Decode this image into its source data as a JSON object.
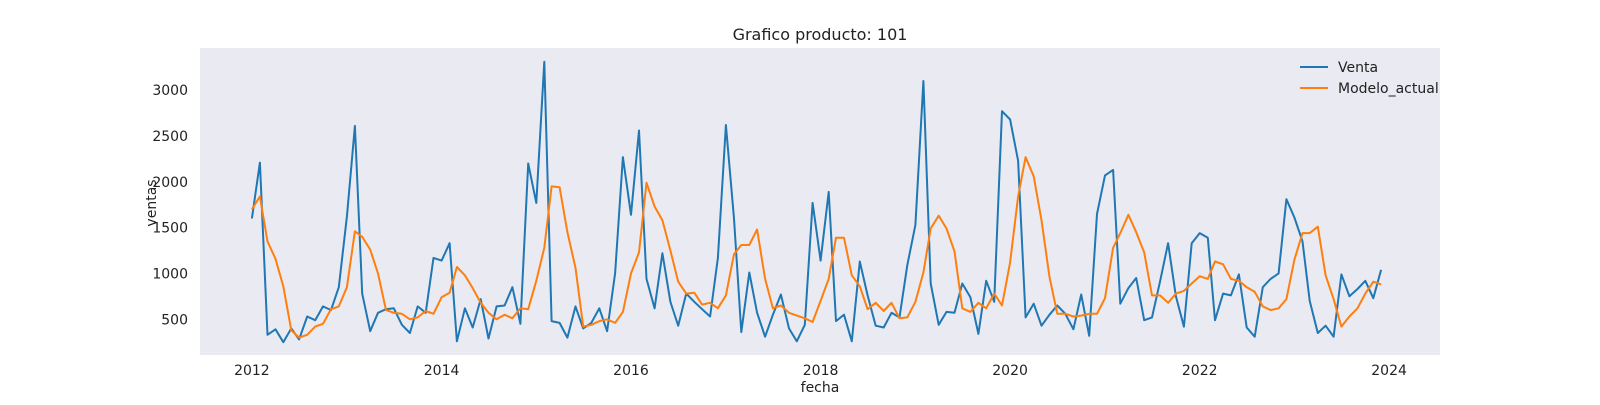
{
  "chart_data": {
    "type": "line",
    "title": "Grafico producto: 101",
    "xlabel": "fecha",
    "ylabel": "ventas",
    "x_type": "date",
    "x_range": [
      "2011-06-15",
      "2024-07-15"
    ],
    "ylim": [
      110,
      3460
    ],
    "x_ticks": [
      "2012",
      "2014",
      "2016",
      "2018",
      "2020",
      "2022",
      "2024"
    ],
    "y_ticks": [
      500,
      1000,
      1500,
      2000,
      2500,
      3000
    ],
    "grid": false,
    "legend": {
      "position": "top-right"
    },
    "background": "#eaeaf2",
    "x": [
      "2012-01-01",
      "2012-02-01",
      "2012-03-01",
      "2012-04-01",
      "2012-05-01",
      "2012-06-01",
      "2012-07-01",
      "2012-08-01",
      "2012-09-01",
      "2012-10-01",
      "2012-11-01",
      "2012-12-01",
      "2013-01-01",
      "2013-02-01",
      "2013-03-01",
      "2013-04-01",
      "2013-05-01",
      "2013-06-01",
      "2013-07-01",
      "2013-08-01",
      "2013-09-01",
      "2013-10-01",
      "2013-11-01",
      "2013-12-01",
      "2014-01-01",
      "2014-02-01",
      "2014-03-01",
      "2014-04-01",
      "2014-05-01",
      "2014-06-01",
      "2014-07-01",
      "2014-08-01",
      "2014-09-01",
      "2014-10-01",
      "2014-11-01",
      "2014-12-01",
      "2015-01-01",
      "2015-02-01",
      "2015-03-01",
      "2015-04-01",
      "2015-05-01",
      "2015-06-01",
      "2015-07-01",
      "2015-08-01",
      "2015-09-01",
      "2015-10-01",
      "2015-11-01",
      "2015-12-01",
      "2016-01-01",
      "2016-02-01",
      "2016-03-01",
      "2016-04-01",
      "2016-05-01",
      "2016-06-01",
      "2016-07-01",
      "2016-08-01",
      "2016-09-01",
      "2016-10-01",
      "2016-11-01",
      "2016-12-01",
      "2017-01-01",
      "2017-02-01",
      "2017-03-01",
      "2017-04-01",
      "2017-05-01",
      "2017-06-01",
      "2017-07-01",
      "2017-08-01",
      "2017-09-01",
      "2017-10-01",
      "2017-11-01",
      "2017-12-01",
      "2018-01-01",
      "2018-02-01",
      "2018-03-01",
      "2018-04-01",
      "2018-05-01",
      "2018-06-01",
      "2018-07-01",
      "2018-08-01",
      "2018-09-01",
      "2018-10-01",
      "2018-11-01",
      "2018-12-01",
      "2019-01-01",
      "2019-02-01",
      "2019-03-01",
      "2019-04-01",
      "2019-05-01",
      "2019-06-01",
      "2019-07-01",
      "2019-08-01",
      "2019-09-01",
      "2019-10-01",
      "2019-11-01",
      "2019-12-01",
      "2020-01-01",
      "2020-02-01",
      "2020-03-01",
      "2020-04-01",
      "2020-05-01",
      "2020-06-01",
      "2020-07-01",
      "2020-08-01",
      "2020-09-01",
      "2020-10-01",
      "2020-11-01",
      "2020-12-01",
      "2021-01-01",
      "2021-02-01",
      "2021-03-01",
      "2021-04-01",
      "2021-05-01",
      "2021-06-01",
      "2021-07-01",
      "2021-08-01",
      "2021-09-01",
      "2021-10-01",
      "2021-11-01",
      "2021-12-01",
      "2022-01-01",
      "2022-02-01",
      "2022-03-01",
      "2022-04-01",
      "2022-05-01",
      "2022-06-01",
      "2022-07-01",
      "2022-08-01",
      "2022-09-01",
      "2022-10-01",
      "2022-11-01",
      "2022-12-01",
      "2023-01-01",
      "2023-02-01",
      "2023-03-01",
      "2023-04-01",
      "2023-05-01",
      "2023-06-01",
      "2023-07-01",
      "2023-08-01",
      "2023-09-01",
      "2023-10-01",
      "2023-11-01",
      "2023-12-01"
    ],
    "series": [
      {
        "name": "Venta",
        "color": "#1f77b4",
        "values": [
          1600,
          2210,
          330,
          390,
          250,
          400,
          280,
          530,
          490,
          640,
          600,
          850,
          1620,
          2610,
          780,
          370,
          570,
          610,
          620,
          440,
          350,
          640,
          570,
          1170,
          1140,
          1330,
          260,
          620,
          410,
          720,
          290,
          640,
          650,
          850,
          450,
          2200,
          1770,
          3310,
          480,
          460,
          300,
          640,
          400,
          460,
          620,
          370,
          1000,
          2270,
          1640,
          2560,
          940,
          620,
          1220,
          690,
          430,
          780,
          690,
          610,
          530,
          1170,
          2620,
          1600,
          360,
          1010,
          570,
          310,
          550,
          770,
          400,
          260,
          440,
          1770,
          1140,
          1890,
          480,
          550,
          260,
          1130,
          760,
          430,
          410,
          570,
          520,
          1090,
          1530,
          3100,
          890,
          440,
          580,
          570,
          890,
          740,
          340,
          920,
          690,
          2770,
          2680,
          2230,
          520,
          670,
          430,
          550,
          650,
          560,
          390,
          770,
          320,
          1650,
          2070,
          2130,
          670,
          840,
          950,
          490,
          520,
          910,
          1330,
          750,
          420,
          1330,
          1440,
          1390,
          490,
          780,
          760,
          990,
          410,
          310,
          850,
          940,
          1000,
          1810,
          1610,
          1350,
          700,
          350,
          430,
          310,
          990,
          750,
          830,
          920,
          730,
          1040
        ]
      },
      {
        "name": "Modelo_actual",
        "color": "#ff7f0e",
        "values": [
          1700,
          1840,
          1350,
          1160,
          860,
          380,
          300,
          330,
          420,
          450,
          610,
          640,
          850,
          1460,
          1400,
          1260,
          1000,
          600,
          570,
          560,
          500,
          520,
          590,
          560,
          740,
          790,
          1070,
          980,
          840,
          680,
          570,
          500,
          550,
          510,
          620,
          610,
          920,
          1280,
          1950,
          1940,
          1450,
          1060,
          420,
          440,
          480,
          500,
          460,
          580,
          1000,
          1230,
          1990,
          1730,
          1580,
          1250,
          910,
          780,
          790,
          660,
          680,
          620,
          760,
          1210,
          1310,
          1310,
          1480,
          940,
          620,
          650,
          570,
          540,
          510,
          470,
          700,
          940,
          1390,
          1390,
          980,
          860,
          610,
          680,
          590,
          680,
          510,
          520,
          690,
          1010,
          1490,
          1630,
          1490,
          1240,
          620,
          580,
          680,
          620,
          780,
          650,
          1120,
          1840,
          2270,
          2060,
          1580,
          960,
          560,
          560,
          530,
          540,
          560,
          560,
          730,
          1280,
          1440,
          1640,
          1450,
          1230,
          760,
          760,
          680,
          780,
          810,
          890,
          970,
          940,
          1130,
          1100,
          940,
          920,
          850,
          800,
          640,
          600,
          620,
          720,
          1150,
          1440,
          1440,
          1510,
          980,
          720,
          420,
          530,
          620,
          780,
          910,
          880
        ]
      }
    ]
  }
}
